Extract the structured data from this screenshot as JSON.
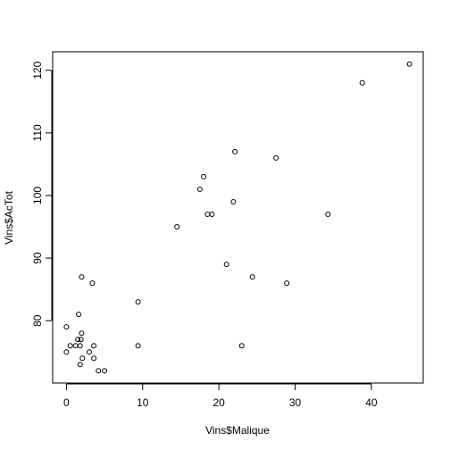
{
  "chart_data": {
    "type": "scatter",
    "x_label": "Vins$Malique",
    "y_label": "Vins$AcTot",
    "x": [
      45,
      38.8,
      22.1,
      27.5,
      18,
      17.5,
      21.9,
      18.5,
      19.1,
      34.3,
      14.5,
      21,
      24.4,
      2,
      28.9,
      3.4,
      9.4,
      1.6,
      0,
      2,
      1.5,
      1.9,
      0.5,
      1.2,
      1.8,
      3.6,
      9.4,
      23,
      0,
      3,
      2.1,
      3.6,
      1.8,
      4.2,
      5
    ],
    "values": [
      121,
      118,
      107,
      106,
      103,
      101,
      99,
      97,
      97,
      97,
      95,
      89,
      87,
      87,
      86,
      86,
      83,
      81,
      79,
      78,
      77,
      77,
      76,
      76,
      76,
      76,
      76,
      76,
      75,
      75,
      74,
      74,
      73,
      72,
      72
    ],
    "color": "#000000",
    "xlim": [
      -1.8,
      46.8
    ],
    "ylim": [
      70.04,
      122.96
    ],
    "xticks": [
      0,
      10,
      20,
      30,
      40
    ],
    "yticks": [
      80,
      90,
      100,
      110,
      120
    ]
  }
}
